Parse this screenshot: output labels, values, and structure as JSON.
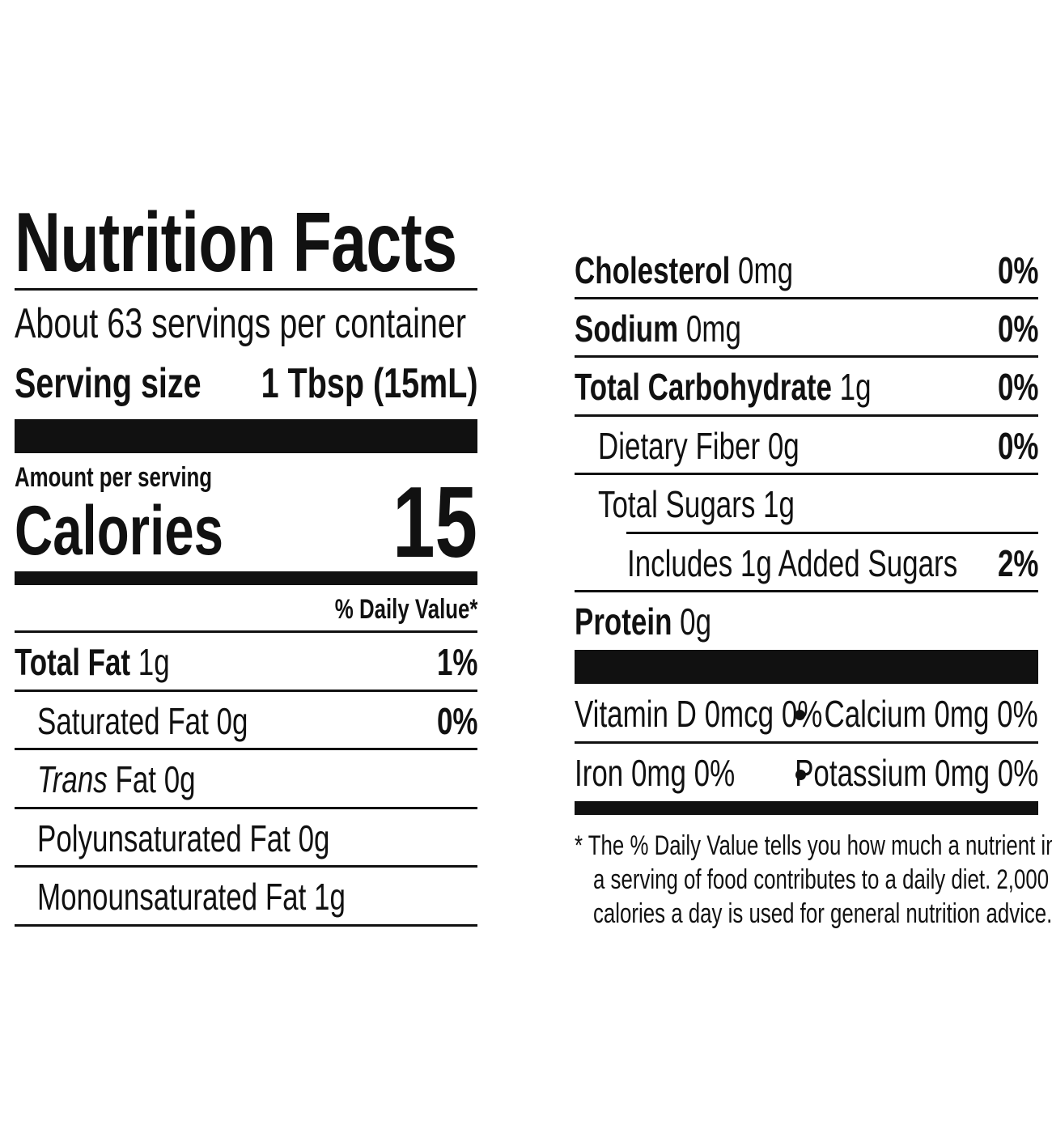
{
  "label": {
    "title": "Nutrition Facts",
    "servings_per_container": "About 63 servings per container",
    "serving_size_label": "Serving size",
    "serving_size_value": "1 Tbsp (15mL)",
    "amount_per_serving": "Amount per serving",
    "calories_label": "Calories",
    "calories_value": "15",
    "daily_value_header": "% Daily Value*"
  },
  "nutrients_left": [
    {
      "name": "Total Fat",
      "amount": "1g",
      "dv": "1%"
    },
    {
      "name": "Saturated Fat",
      "amount": "0g",
      "dv": "0%"
    },
    {
      "name": "Trans",
      "name_rest": "Fat",
      "amount": "0g",
      "dv": ""
    },
    {
      "name": "Polyunsaturated Fat",
      "amount": "0g",
      "dv": ""
    },
    {
      "name": "Monounsaturated Fat",
      "amount": "1g",
      "dv": ""
    }
  ],
  "nutrients_right": [
    {
      "name": "Cholesterol",
      "amount": "0mg",
      "dv": "0%"
    },
    {
      "name": "Sodium",
      "amount": "0mg",
      "dv": "0%"
    },
    {
      "name": "Total Carbohydrate",
      "amount": "1g",
      "dv": "0%"
    },
    {
      "name": "Dietary Fiber",
      "amount": "0g",
      "dv": "0%"
    },
    {
      "name": "Total Sugars",
      "amount": "1g",
      "dv": ""
    },
    {
      "name": "Includes 1g Added Sugars",
      "amount": "",
      "dv": "2%"
    },
    {
      "name": "Protein",
      "amount": "0g",
      "dv": ""
    }
  ],
  "vitamins": [
    {
      "text": "Vitamin D 0mcg 0%"
    },
    {
      "text": "Calcium 0mg 0%"
    },
    {
      "text": "Iron 0mg 0%"
    },
    {
      "text": "Potassium 0mg 0%"
    }
  ],
  "footnote_lines": [
    "* The % Daily Value tells you how much a nutrient in",
    "a serving of food contributes to a daily diet. 2,000",
    "calories a day is used for general nutrition advice."
  ]
}
